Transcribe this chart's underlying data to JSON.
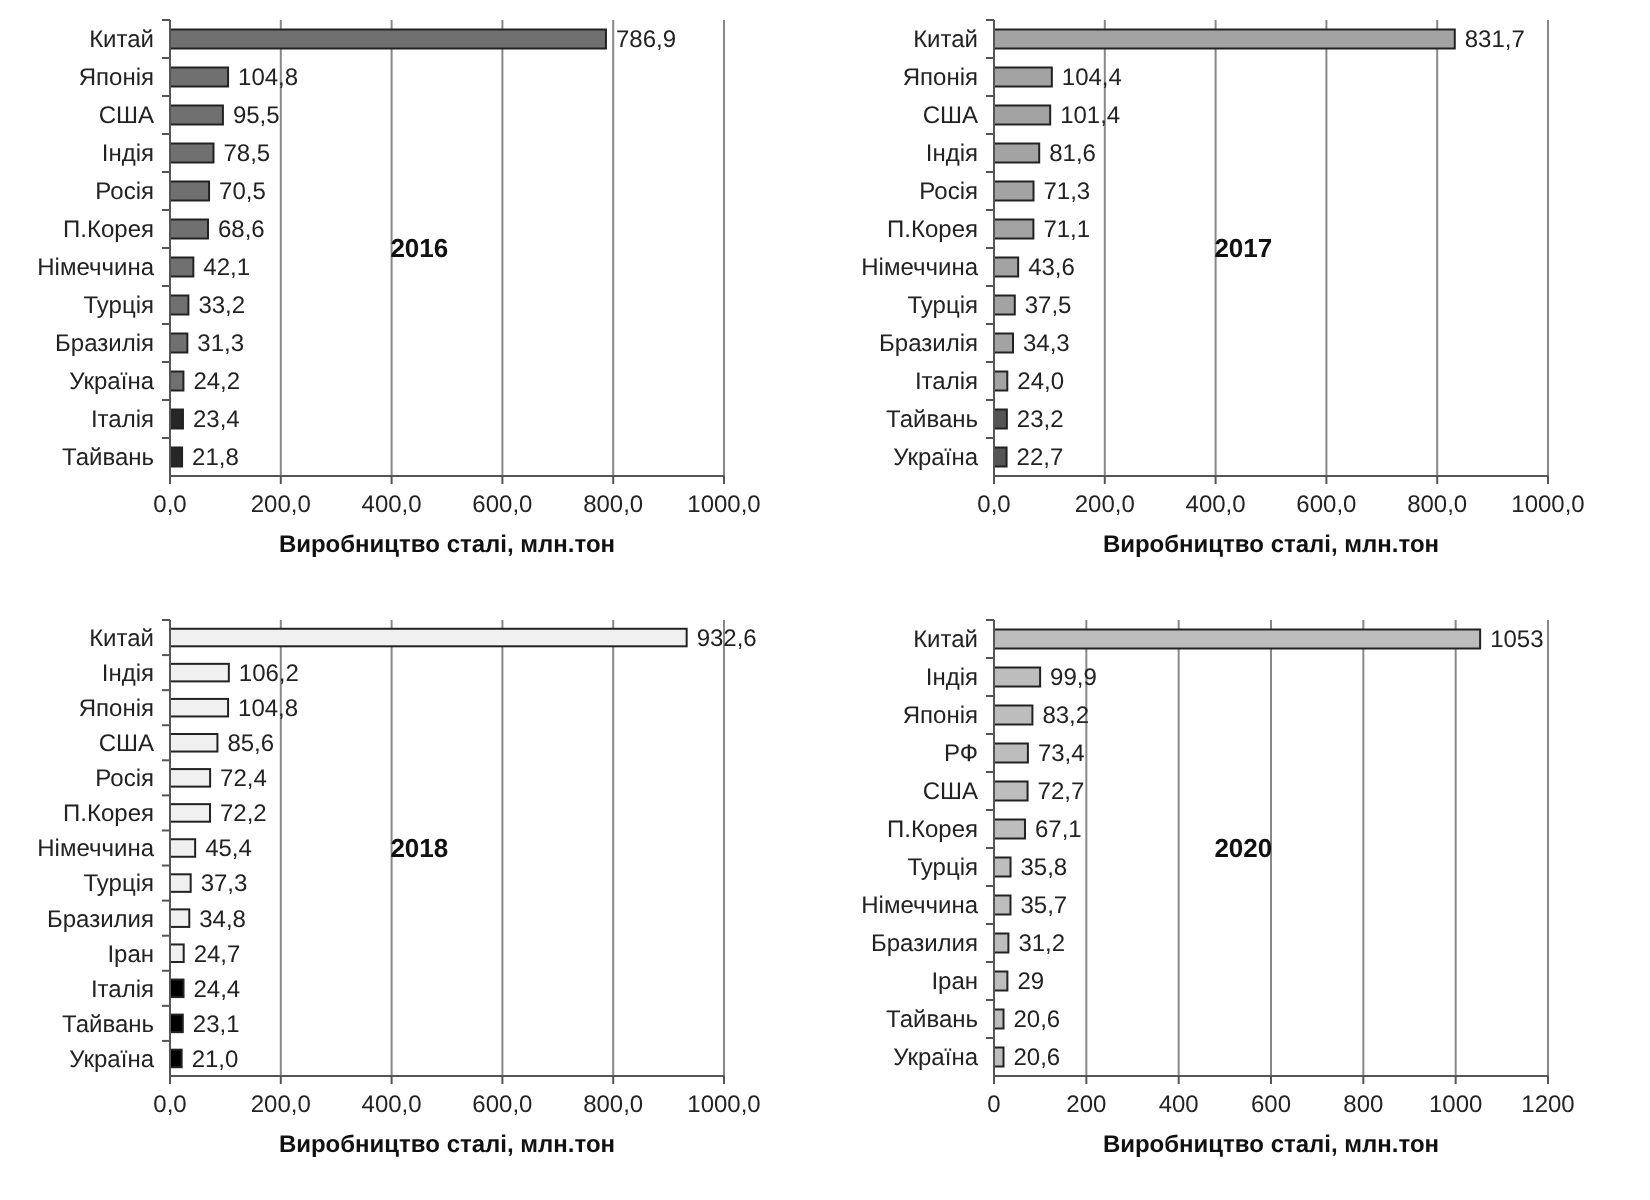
{
  "chart_data": [
    {
      "type": "bar",
      "orientation": "horizontal",
      "categories": [
        "Китай",
        "Японія",
        "США",
        "Індія",
        "Росія",
        "П.Корея",
        "Німеччина",
        "Турція",
        "Бразилія",
        "Україна",
        "Італія",
        "Тайвань"
      ],
      "values": [
        786.9,
        104.8,
        95.5,
        78.5,
        70.5,
        68.6,
        42.1,
        33.2,
        31.3,
        24.2,
        23.4,
        21.8
      ],
      "value_labels": [
        "786,9",
        "104,8",
        "95,5",
        "78,5",
        "70,5",
        "68,6",
        "42,1",
        "33,2",
        "31,3",
        "24,2",
        "23,4",
        "21,8"
      ],
      "colors": [
        "#707070",
        "#707070",
        "#707070",
        "#707070",
        "#707070",
        "#707070",
        "#707070",
        "#707070",
        "#707070",
        "#707070",
        "#262626",
        "#262626"
      ],
      "xlim": [
        0,
        1000
      ],
      "xticks": [
        {
          "value": 0,
          "label": "0,0"
        },
        {
          "value": 200,
          "label": "200,0"
        },
        {
          "value": 400,
          "label": "400,0"
        },
        {
          "value": 600,
          "label": "600,0"
        },
        {
          "value": 800,
          "label": "800,0"
        },
        {
          "value": 1000,
          "label": "1000,0"
        }
      ],
      "xlabel": "Виробництво сталі, млн.тон",
      "annotations": [
        "2016"
      ],
      "grid": "x"
    },
    {
      "type": "bar",
      "orientation": "horizontal",
      "categories": [
        "Китай",
        "Японія",
        "США",
        "Індія",
        "Росія",
        "П.Корея",
        "Німеччина",
        "Турція",
        "Бразилія",
        "Італія",
        "Тайвань",
        "Україна"
      ],
      "values": [
        831.7,
        104.4,
        101.4,
        81.6,
        71.3,
        71.1,
        43.6,
        37.5,
        34.3,
        24.0,
        23.2,
        22.7
      ],
      "value_labels": [
        "831,7",
        "104,4",
        "101,4",
        "81,6",
        "71,3",
        "71,1",
        "43,6",
        "37,5",
        "34,3",
        "24,0",
        "23,2",
        "22,7"
      ],
      "colors": [
        "#a3a3a3",
        "#a3a3a3",
        "#a3a3a3",
        "#a3a3a3",
        "#a3a3a3",
        "#a3a3a3",
        "#a3a3a3",
        "#a3a3a3",
        "#a3a3a3",
        "#a3a3a3",
        "#555555",
        "#555555"
      ],
      "xlim": [
        0,
        1000
      ],
      "xticks": [
        {
          "value": 0,
          "label": "0,0"
        },
        {
          "value": 200,
          "label": "200,0"
        },
        {
          "value": 400,
          "label": "400,0"
        },
        {
          "value": 600,
          "label": "600,0"
        },
        {
          "value": 800,
          "label": "800,0"
        },
        {
          "value": 1000,
          "label": "1000,0"
        }
      ],
      "xlabel": "Виробництво сталі, млн.тон",
      "annotations": [
        "2017"
      ],
      "grid": "x"
    },
    {
      "type": "bar",
      "orientation": "horizontal",
      "categories": [
        "Китай",
        "Індія",
        "Японія",
        "США",
        "Росія",
        "П.Корея",
        "Німеччина",
        "Турція",
        "Бразилия",
        "Іран",
        "Італія",
        "Тайвань",
        "Україна"
      ],
      "values": [
        932.6,
        106.2,
        104.8,
        85.6,
        72.4,
        72.2,
        45.4,
        37.3,
        34.8,
        24.7,
        24.4,
        23.1,
        21.0
      ],
      "value_labels": [
        "932,6",
        "106,2",
        "104,8",
        "85,6",
        "72,4",
        "72,2",
        "45,4",
        "37,3",
        "34,8",
        "24,7",
        "24,4",
        "23,1",
        "21,0"
      ],
      "colors": [
        "#f0f0f0",
        "#f0f0f0",
        "#f0f0f0",
        "#f0f0f0",
        "#f0f0f0",
        "#f0f0f0",
        "#f0f0f0",
        "#f0f0f0",
        "#f0f0f0",
        "#f0f0f0",
        "#000000",
        "#000000",
        "#000000"
      ],
      "xlim": [
        0,
        1000
      ],
      "xticks": [
        {
          "value": 0,
          "label": "0,0"
        },
        {
          "value": 200,
          "label": "200,0"
        },
        {
          "value": 400,
          "label": "400,0"
        },
        {
          "value": 600,
          "label": "600,0"
        },
        {
          "value": 800,
          "label": "800,0"
        },
        {
          "value": 1000,
          "label": "1000,0"
        }
      ],
      "xlabel": "Виробництво сталі, млн.тон",
      "annotations": [
        "2018"
      ],
      "grid": "x"
    },
    {
      "type": "bar",
      "orientation": "horizontal",
      "categories": [
        "Китай",
        "Індія",
        "Японія",
        "РФ",
        "США",
        "П.Корея",
        "Турція",
        "Німеччина",
        "Бразилия",
        "Іран",
        "Тайвань",
        "Україна"
      ],
      "values": [
        1053,
        99.9,
        83.2,
        73.4,
        72.7,
        67.1,
        35.8,
        35.7,
        31.2,
        29,
        20.6,
        20.6
      ],
      "value_labels": [
        "1053",
        "99,9",
        "83,2",
        "73,4",
        "72,7",
        "67,1",
        "35,8",
        "35,7",
        "31,2",
        "29",
        "20,6",
        "20,6"
      ],
      "colors": [
        "#bdbdbd",
        "#bdbdbd",
        "#bdbdbd",
        "#bdbdbd",
        "#bdbdbd",
        "#bdbdbd",
        "#bdbdbd",
        "#bdbdbd",
        "#bdbdbd",
        "#bdbdbd",
        "#bdbdbd",
        "#bdbdbd"
      ],
      "xlim": [
        0,
        1200
      ],
      "xticks": [
        0,
        200,
        400,
        600,
        800,
        1000,
        1200
      ],
      "xlabel": "Виробництво сталі, млн.тон",
      "annotations": [
        "2020"
      ],
      "grid": "x"
    }
  ]
}
